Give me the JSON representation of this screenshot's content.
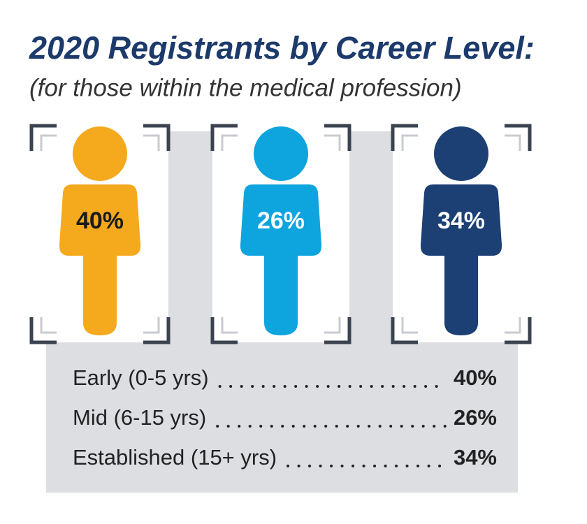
{
  "header": {
    "title": "2020 Registrants by Career Level:",
    "subtitle": "(for those within the medical profession)"
  },
  "figures": [
    {
      "label": "40%",
      "color": "#f5a91d",
      "label_color": "#1a1a1a"
    },
    {
      "label": "26%",
      "color": "#0ea4de",
      "label_color": "#ffffff"
    },
    {
      "label": "34%",
      "color": "#1c3f74",
      "label_color": "#ffffff"
    }
  ],
  "legend": [
    {
      "name": "Early (0-5 yrs)",
      "value": "40%"
    },
    {
      "name": "Mid (6-15 yrs)",
      "value": "26%"
    },
    {
      "name": "Established (15+ yrs)",
      "value": "34%"
    }
  ]
}
